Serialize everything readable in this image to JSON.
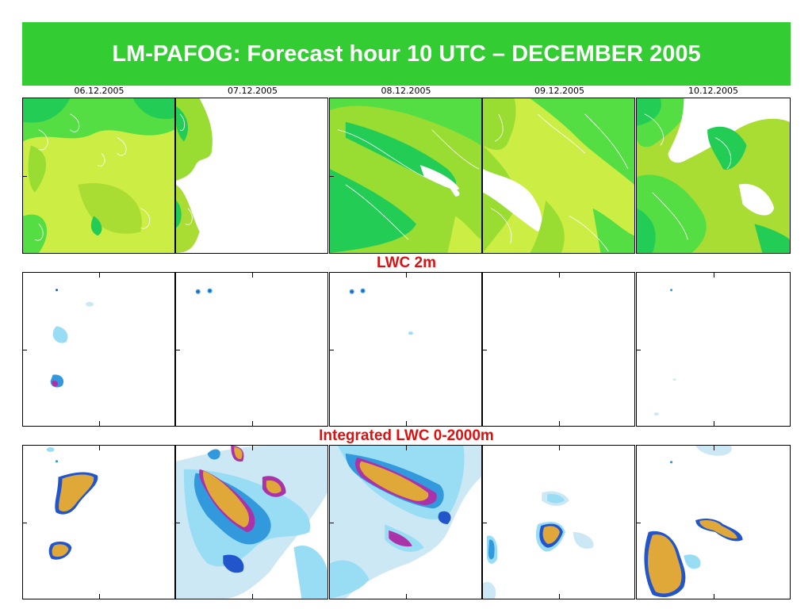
{
  "title": "LM-PAFOG: Forecast hour 10 UTC – DECEMBER 2005",
  "dates": [
    "06.12.2005",
    "07.12.2005",
    "08.12.2005",
    "09.12.2005",
    "10.12.2005"
  ],
  "row_labels": {
    "lwc_2m": "LWC 2m",
    "integrated": "Integrated LWC 0-2000m"
  },
  "colors": {
    "title_bg": "#33cc33",
    "label_red": "#dd1111",
    "fog_light": "#ccee44",
    "fog_mid": "#99dd33",
    "fog_dark": "#22cc55",
    "water_light": "#99ddf5",
    "water_mid": "#3399dd",
    "water_dark": "#2255cc",
    "water_core": "#aa33aa",
    "water_peak": "#e0a838"
  }
}
